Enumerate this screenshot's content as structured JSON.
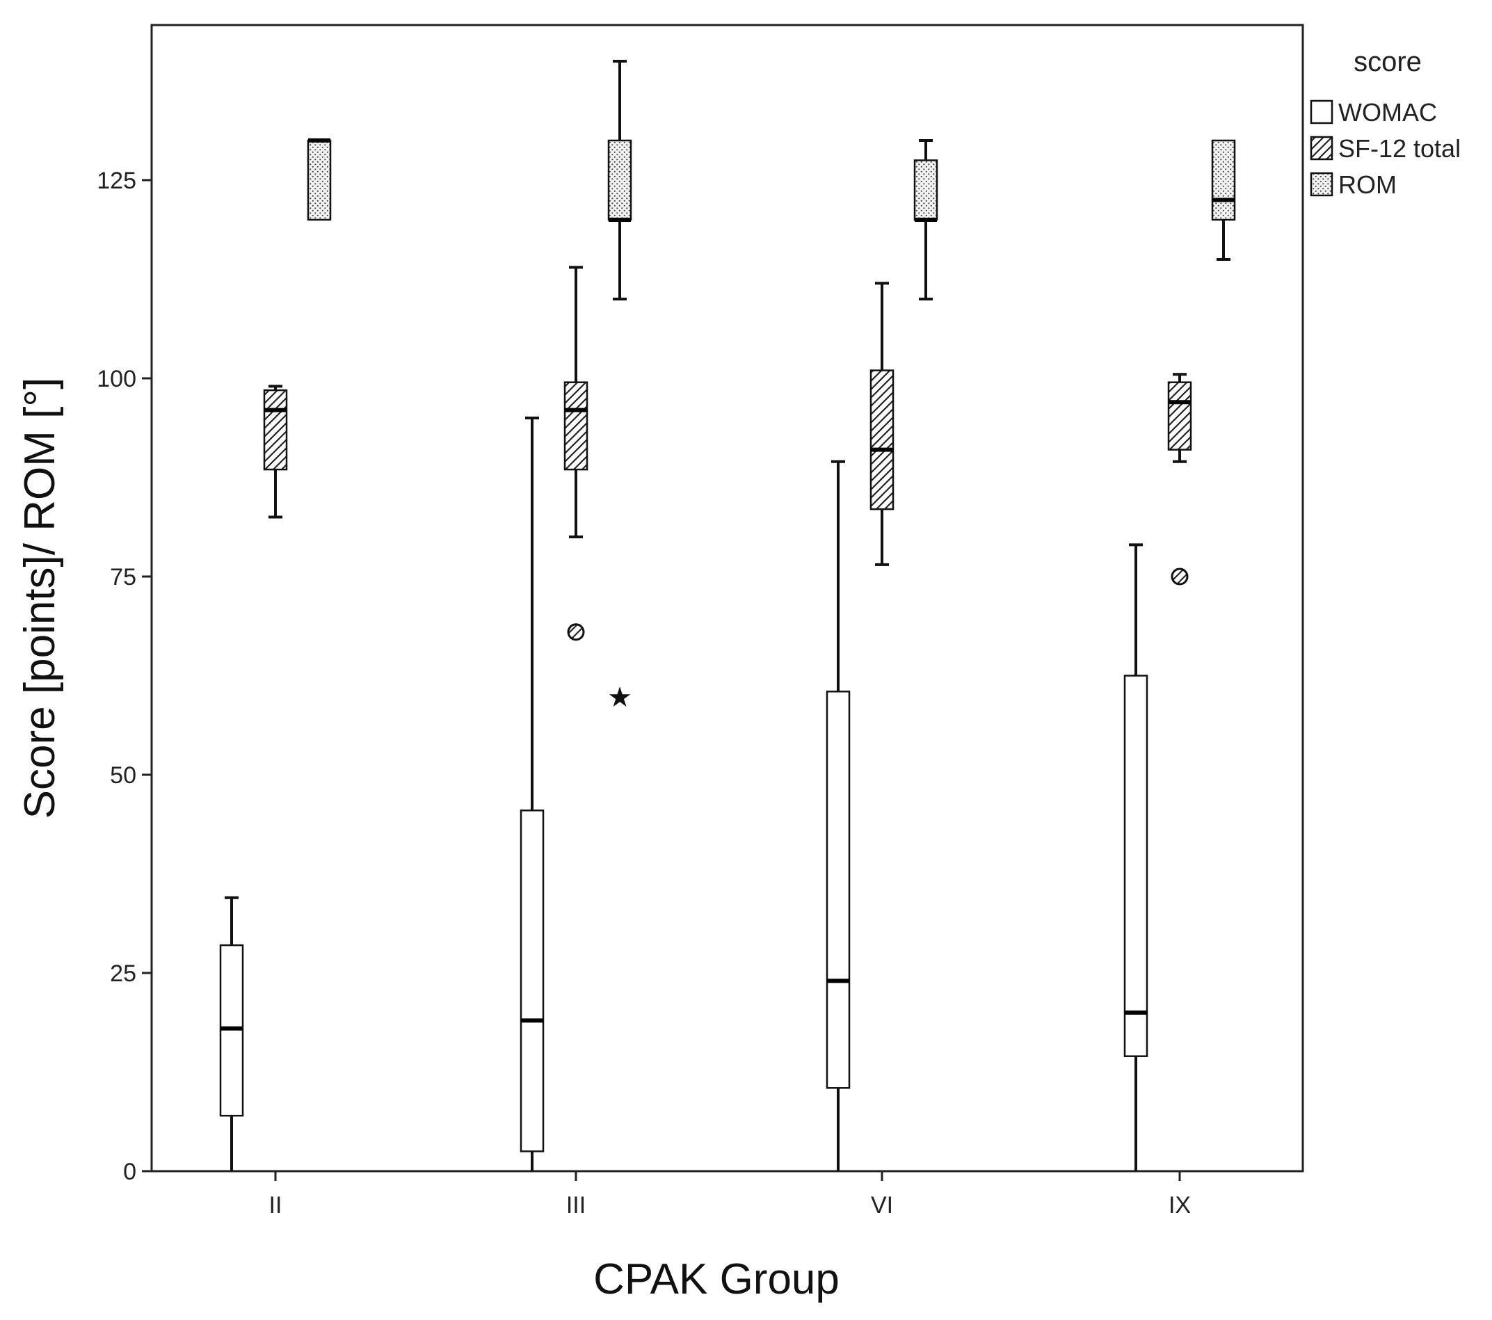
{
  "chart_data": {
    "type": "boxplot",
    "title": "",
    "xlabel": "CPAK Group",
    "ylabel": "Score [points]/ ROM [°]",
    "categories": [
      "II",
      "III",
      "VI",
      "IX"
    ],
    "yticks": [
      "0",
      "25",
      "50",
      "75",
      "100",
      "125"
    ],
    "ylim": [
      0,
      145
    ],
    "grid": false,
    "legend": {
      "title": "score",
      "position": "top-right"
    },
    "series": [
      {
        "name": "WOMAC",
        "pattern": "plain",
        "boxes": [
          {
            "min": 0,
            "q1": 7,
            "median": 18,
            "q3": 28.5,
            "max": 34.5,
            "outliers": [],
            "extremes": []
          },
          {
            "min": 0,
            "q1": 2.5,
            "median": 19,
            "q3": 45.5,
            "max": 95,
            "outliers": [],
            "extremes": []
          },
          {
            "min": 0,
            "q1": 10.5,
            "median": 24,
            "q3": 60.5,
            "max": 89.5,
            "outliers": [],
            "extremes": []
          },
          {
            "min": 0,
            "q1": 14.5,
            "median": 20,
            "q3": 62.5,
            "max": 79,
            "outliers": [],
            "extremes": []
          }
        ]
      },
      {
        "name": "SF-12 total",
        "pattern": "hatched",
        "boxes": [
          {
            "min": 82.5,
            "q1": 88.5,
            "median": 96,
            "q3": 98.5,
            "max": 99,
            "outliers": [],
            "extremes": []
          },
          {
            "min": 80,
            "q1": 88.5,
            "median": 96,
            "q3": 99.5,
            "max": 114,
            "outliers": [
              68
            ],
            "extremes": []
          },
          {
            "min": 76.5,
            "q1": 83.5,
            "median": 91,
            "q3": 101,
            "max": 112,
            "outliers": [],
            "extremes": []
          },
          {
            "min": 89.5,
            "q1": 91,
            "median": 97,
            "q3": 99.5,
            "max": 100.5,
            "outliers": [
              75
            ],
            "extremes": []
          }
        ]
      },
      {
        "name": "ROM",
        "pattern": "dotted",
        "boxes": [
          {
            "min": 120,
            "q1": 120,
            "median": 130,
            "q3": 130,
            "max": 130,
            "outliers": [],
            "extremes": []
          },
          {
            "min": 110,
            "q1": 120,
            "median": 120,
            "q3": 130,
            "max": 140,
            "outliers": [],
            "extremes": [
              60
            ]
          },
          {
            "min": 110,
            "q1": 120,
            "median": 120,
            "q3": 127.5,
            "max": 130,
            "outliers": [],
            "extremes": []
          },
          {
            "min": 115,
            "q1": 120,
            "median": 122.5,
            "q3": 130,
            "max": 130,
            "outliers": [],
            "extremes": []
          }
        ]
      }
    ]
  }
}
